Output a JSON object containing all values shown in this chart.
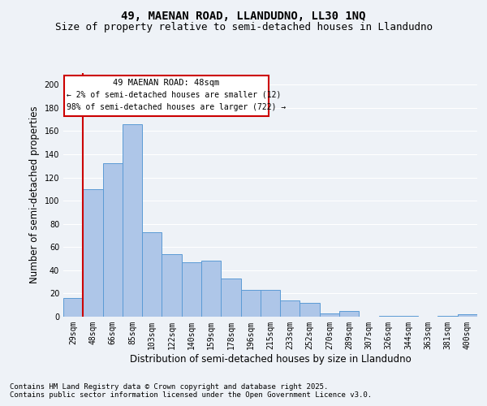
{
  "title_line1": "49, MAENAN ROAD, LLANDUDNO, LL30 1NQ",
  "title_line2": "Size of property relative to semi-detached houses in Llandudno",
  "xlabel": "Distribution of semi-detached houses by size in Llandudno",
  "ylabel": "Number of semi-detached properties",
  "categories": [
    "29sqm",
    "48sqm",
    "66sqm",
    "85sqm",
    "103sqm",
    "122sqm",
    "140sqm",
    "159sqm",
    "178sqm",
    "196sqm",
    "215sqm",
    "233sqm",
    "252sqm",
    "270sqm",
    "289sqm",
    "307sqm",
    "326sqm",
    "344sqm",
    "363sqm",
    "381sqm",
    "400sqm"
  ],
  "values": [
    16,
    110,
    132,
    166,
    73,
    54,
    47,
    48,
    33,
    23,
    23,
    14,
    12,
    3,
    5,
    0,
    1,
    1,
    0,
    1,
    2
  ],
  "bar_color": "#aec6e8",
  "bar_edge_color": "#5b9bd5",
  "highlight_index": 1,
  "highlight_line_color": "#cc0000",
  "ylim": [
    0,
    210
  ],
  "yticks": [
    0,
    20,
    40,
    60,
    80,
    100,
    120,
    140,
    160,
    180,
    200
  ],
  "annotation_title": "49 MAENAN ROAD: 48sqm",
  "annotation_line1": "← 2% of semi-detached houses are smaller (12)",
  "annotation_line2": "98% of semi-detached houses are larger (722) →",
  "annotation_box_color": "#cc0000",
  "footer_line1": "Contains HM Land Registry data © Crown copyright and database right 2025.",
  "footer_line2": "Contains public sector information licensed under the Open Government Licence v3.0.",
  "background_color": "#eef2f7",
  "grid_color": "#ffffff",
  "title_fontsize": 10,
  "subtitle_fontsize": 9,
  "axis_label_fontsize": 8.5,
  "tick_fontsize": 7,
  "footer_fontsize": 6.5
}
